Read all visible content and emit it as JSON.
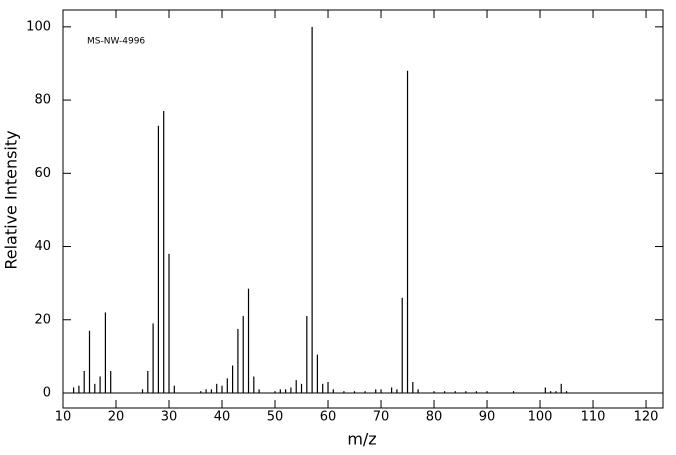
{
  "chart_data": {
    "type": "bar",
    "annotation": "MS-NW-4996",
    "xlabel": "m/z",
    "ylabel": "Relative Intensity",
    "x": [
      12,
      13,
      14,
      15,
      16,
      17,
      18,
      19,
      25,
      26,
      27,
      28,
      29,
      30,
      31,
      36,
      37,
      38,
      39,
      40,
      41,
      42,
      43,
      44,
      45,
      46,
      47,
      50,
      51,
      52,
      53,
      54,
      55,
      56,
      57,
      58,
      59,
      60,
      61,
      63,
      65,
      67,
      69,
      70,
      72,
      73,
      74,
      75,
      76,
      77,
      80,
      82,
      84,
      86,
      88,
      90,
      95,
      101,
      102,
      103,
      104,
      105
    ],
    "values": [
      1.5,
      2,
      6,
      17,
      2.5,
      4.5,
      22,
      6,
      1,
      6,
      19,
      73,
      77,
      38,
      2,
      0.5,
      1,
      1,
      2.5,
      2,
      4,
      7.5,
      17.5,
      21,
      28.5,
      4.5,
      1,
      0.5,
      1,
      1,
      1.5,
      3.5,
      2.5,
      21,
      100,
      10.5,
      2.5,
      3,
      1,
      0.5,
      0.5,
      0.5,
      1,
      1,
      1.5,
      1,
      26,
      88,
      3,
      1,
      0.5,
      0.5,
      0.5,
      0.5,
      0.5,
      0.5,
      0.5,
      1.5,
      0.5,
      0.5,
      2.5,
      0.5
    ],
    "color": "#000000",
    "xlim": [
      10,
      123.2
    ],
    "xticks": [
      10,
      20,
      30,
      40,
      50,
      60,
      70,
      80,
      90,
      100,
      110,
      120
    ],
    "ylim": [
      -4.1,
      104.6
    ],
    "yticks": [
      0,
      20,
      40,
      60,
      80,
      100
    ]
  }
}
